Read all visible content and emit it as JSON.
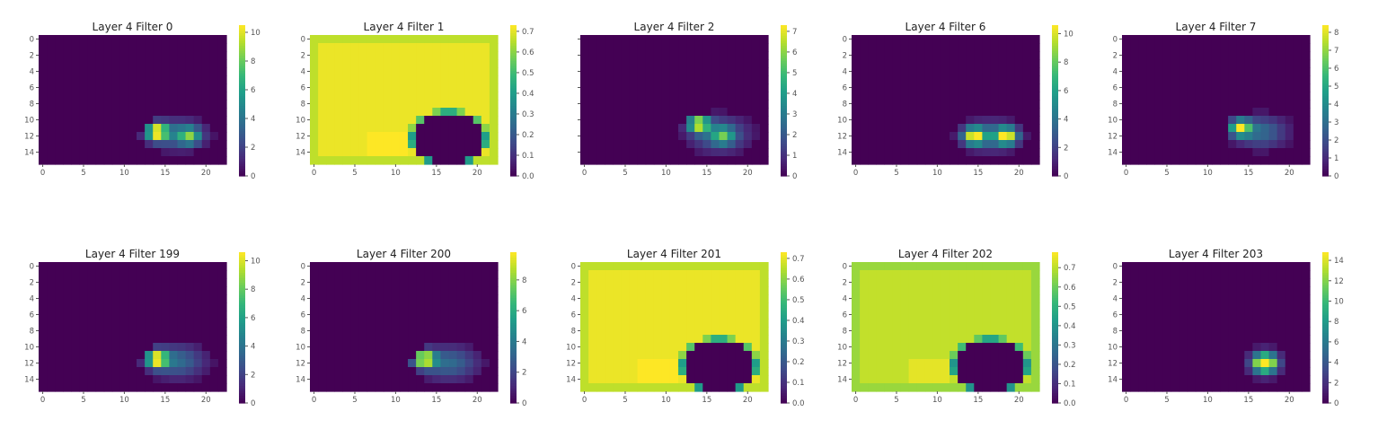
{
  "chart_data": [
    {
      "type": "heatmap",
      "title": "Layer 4 Filter 0",
      "colormap": "viridis",
      "x_range": [
        0,
        22
      ],
      "y_range": [
        0,
        15
      ],
      "x_ticks": [
        "0",
        "5",
        "10",
        "15",
        "20"
      ],
      "y_ticks": [
        "0",
        "2",
        "4",
        "6",
        "8",
        "10",
        "12",
        "14"
      ],
      "colorbar": {
        "min": 0,
        "max": 10.5,
        "ticks": [
          "0",
          "2",
          "4",
          "6",
          "8",
          "10"
        ]
      },
      "pattern": "blob",
      "blob": {
        "cx": 16.5,
        "cy": 11.8,
        "sx": 3.6,
        "sy": 2.0,
        "peaks": [
          [
            14,
            11.5,
            1.0
          ],
          [
            18,
            12,
            0.55
          ]
        ]
      }
    },
    {
      "type": "heatmap",
      "title": "Layer 4 Filter 1",
      "colormap": "viridis",
      "x_range": [
        0,
        22
      ],
      "y_range": [
        0,
        15
      ],
      "x_ticks": [
        "0",
        "5",
        "10",
        "15",
        "20"
      ],
      "y_ticks": [
        "0",
        "2",
        "4",
        "6",
        "8",
        "10",
        "12",
        "14"
      ],
      "colorbar": {
        "min": 0,
        "max": 0.73,
        "ticks": [
          "0.0",
          "0.1",
          "0.2",
          "0.3",
          "0.4",
          "0.5",
          "0.6",
          "0.7"
        ]
      },
      "pattern": "frame",
      "hole": {
        "cx": 16.5,
        "cy": 12.3,
        "rx": 5.0,
        "ry": 3.6
      }
    },
    {
      "type": "heatmap",
      "title": "Layer 4 Filter 2",
      "colormap": "viridis",
      "x_range": [
        0,
        22
      ],
      "y_range": [
        0,
        15
      ],
      "x_ticks": [
        "0",
        "5",
        "10",
        "15",
        "20"
      ],
      "y_ticks": [
        "",
        "",
        "",
        "",
        "",
        "",
        "",
        ""
      ],
      "colorbar": {
        "min": 0,
        "max": 7.3,
        "ticks": [
          "0",
          "1",
          "2",
          "3",
          "4",
          "5",
          "6",
          "7"
        ]
      },
      "pattern": "blob",
      "blob": {
        "cx": 16.5,
        "cy": 11.8,
        "sx": 3.8,
        "sy": 2.3,
        "peaks": [
          [
            14,
            10.5,
            0.9
          ],
          [
            17,
            12,
            0.45
          ]
        ]
      }
    },
    {
      "type": "heatmap",
      "title": "Layer 4 Filter 6",
      "colormap": "viridis",
      "x_range": [
        0,
        22
      ],
      "y_range": [
        0,
        15
      ],
      "x_ticks": [
        "0",
        "5",
        "10",
        "15",
        "20"
      ],
      "y_ticks": [
        "0",
        "2",
        "4",
        "6",
        "8",
        "10",
        "12",
        "14"
      ],
      "colorbar": {
        "min": 0,
        "max": 10.6,
        "ticks": [
          "0",
          "2",
          "4",
          "6",
          "8",
          "10"
        ]
      },
      "pattern": "blob",
      "blob": {
        "cx": 16.5,
        "cy": 12.0,
        "sx": 3.6,
        "sy": 2.0,
        "peaks": [
          [
            14.5,
            12,
            0.85
          ],
          [
            18.5,
            12,
            0.85
          ]
        ]
      }
    },
    {
      "type": "heatmap",
      "title": "Layer 4 Filter 7",
      "colormap": "viridis",
      "x_range": [
        0,
        22
      ],
      "y_range": [
        0,
        15
      ],
      "x_ticks": [
        "0",
        "5",
        "10",
        "15",
        "20"
      ],
      "y_ticks": [
        "0",
        "2",
        "4",
        "6",
        "8",
        "10",
        "12",
        "14"
      ],
      "colorbar": {
        "min": 0,
        "max": 8.4,
        "ticks": [
          "0",
          "1",
          "2",
          "3",
          "4",
          "5",
          "6",
          "7",
          "8"
        ]
      },
      "pattern": "blob",
      "blob": {
        "cx": 16.5,
        "cy": 11.5,
        "sx": 3.4,
        "sy": 2.1,
        "peaks": [
          [
            14,
            11,
            0.85
          ]
        ]
      }
    },
    {
      "type": "heatmap",
      "title": "Layer 4 Filter 199",
      "colormap": "viridis",
      "x_range": [
        0,
        22
      ],
      "y_range": [
        0,
        15
      ],
      "x_ticks": [
        "0",
        "5",
        "10",
        "15",
        "20"
      ],
      "y_ticks": [
        "0",
        "2",
        "4",
        "6",
        "8",
        "10",
        "12",
        "14"
      ],
      "colorbar": {
        "min": 0,
        "max": 10.6,
        "ticks": [
          "0",
          "2",
          "4",
          "6",
          "8",
          "10"
        ]
      },
      "pattern": "blob",
      "blob": {
        "cx": 16.5,
        "cy": 11.8,
        "sx": 3.6,
        "sy": 2.2,
        "peaks": [
          [
            14,
            11.5,
            1.0
          ]
        ]
      }
    },
    {
      "type": "heatmap",
      "title": "Layer 4 Filter 200",
      "colormap": "viridis",
      "x_range": [
        0,
        22
      ],
      "y_range": [
        0,
        15
      ],
      "x_ticks": [
        "0",
        "5",
        "10",
        "15",
        "20"
      ],
      "y_ticks": [
        "0",
        "2",
        "4",
        "6",
        "8",
        "10",
        "12",
        "14"
      ],
      "colorbar": {
        "min": 0,
        "max": 9.8,
        "ticks": [
          "0",
          "2",
          "4",
          "6",
          "8"
        ]
      },
      "pattern": "blob",
      "blob": {
        "cx": 16.5,
        "cy": 12.0,
        "sx": 3.8,
        "sy": 2.2,
        "peaks": [
          [
            13.5,
            11.5,
            1.0
          ]
        ]
      }
    },
    {
      "type": "heatmap",
      "title": "Layer 4 Filter 201",
      "colormap": "viridis",
      "x_range": [
        0,
        22
      ],
      "y_range": [
        0,
        15
      ],
      "x_ticks": [
        "0",
        "5",
        "10",
        "15",
        "20"
      ],
      "y_ticks": [
        "0",
        "2",
        "4",
        "6",
        "8",
        "10",
        "12",
        "14"
      ],
      "colorbar": {
        "min": 0,
        "max": 0.73,
        "ticks": [
          "0.0",
          "0.1",
          "0.2",
          "0.3",
          "0.4",
          "0.5",
          "0.6",
          "0.7"
        ]
      },
      "pattern": "frame",
      "hole": {
        "cx": 16.5,
        "cy": 12.3,
        "rx": 5.0,
        "ry": 3.6
      }
    },
    {
      "type": "heatmap",
      "title": "Layer 4 Filter 202",
      "colormap": "viridis",
      "x_range": [
        0,
        22
      ],
      "y_range": [
        0,
        15
      ],
      "x_ticks": [
        "0",
        "5",
        "10",
        "15",
        "20"
      ],
      "y_ticks": [
        "0",
        "2",
        "4",
        "6",
        "8",
        "10",
        "12",
        "14"
      ],
      "colorbar": {
        "min": 0,
        "max": 0.78,
        "ticks": [
          "0.0",
          "0.1",
          "0.2",
          "0.3",
          "0.4",
          "0.5",
          "0.6",
          "0.7"
        ]
      },
      "pattern": "frame",
      "hole": {
        "cx": 16.5,
        "cy": 12.3,
        "rx": 5.0,
        "ry": 3.6
      }
    },
    {
      "type": "heatmap",
      "title": "Layer 4 Filter 203",
      "colormap": "viridis",
      "x_range": [
        0,
        22
      ],
      "y_range": [
        0,
        15
      ],
      "x_ticks": [
        "0",
        "5",
        "10",
        "15",
        "20"
      ],
      "y_ticks": [
        "0",
        "2",
        "4",
        "6",
        "8",
        "10",
        "12",
        "14"
      ],
      "colorbar": {
        "min": 0,
        "max": 14.8,
        "ticks": [
          "0",
          "2",
          "4",
          "6",
          "8",
          "10",
          "12",
          "14"
        ]
      },
      "pattern": "blob",
      "blob": {
        "cx": 17,
        "cy": 12,
        "sx": 2.2,
        "sy": 1.8,
        "peaks": [
          [
            17,
            12,
            1.0
          ]
        ]
      }
    }
  ]
}
